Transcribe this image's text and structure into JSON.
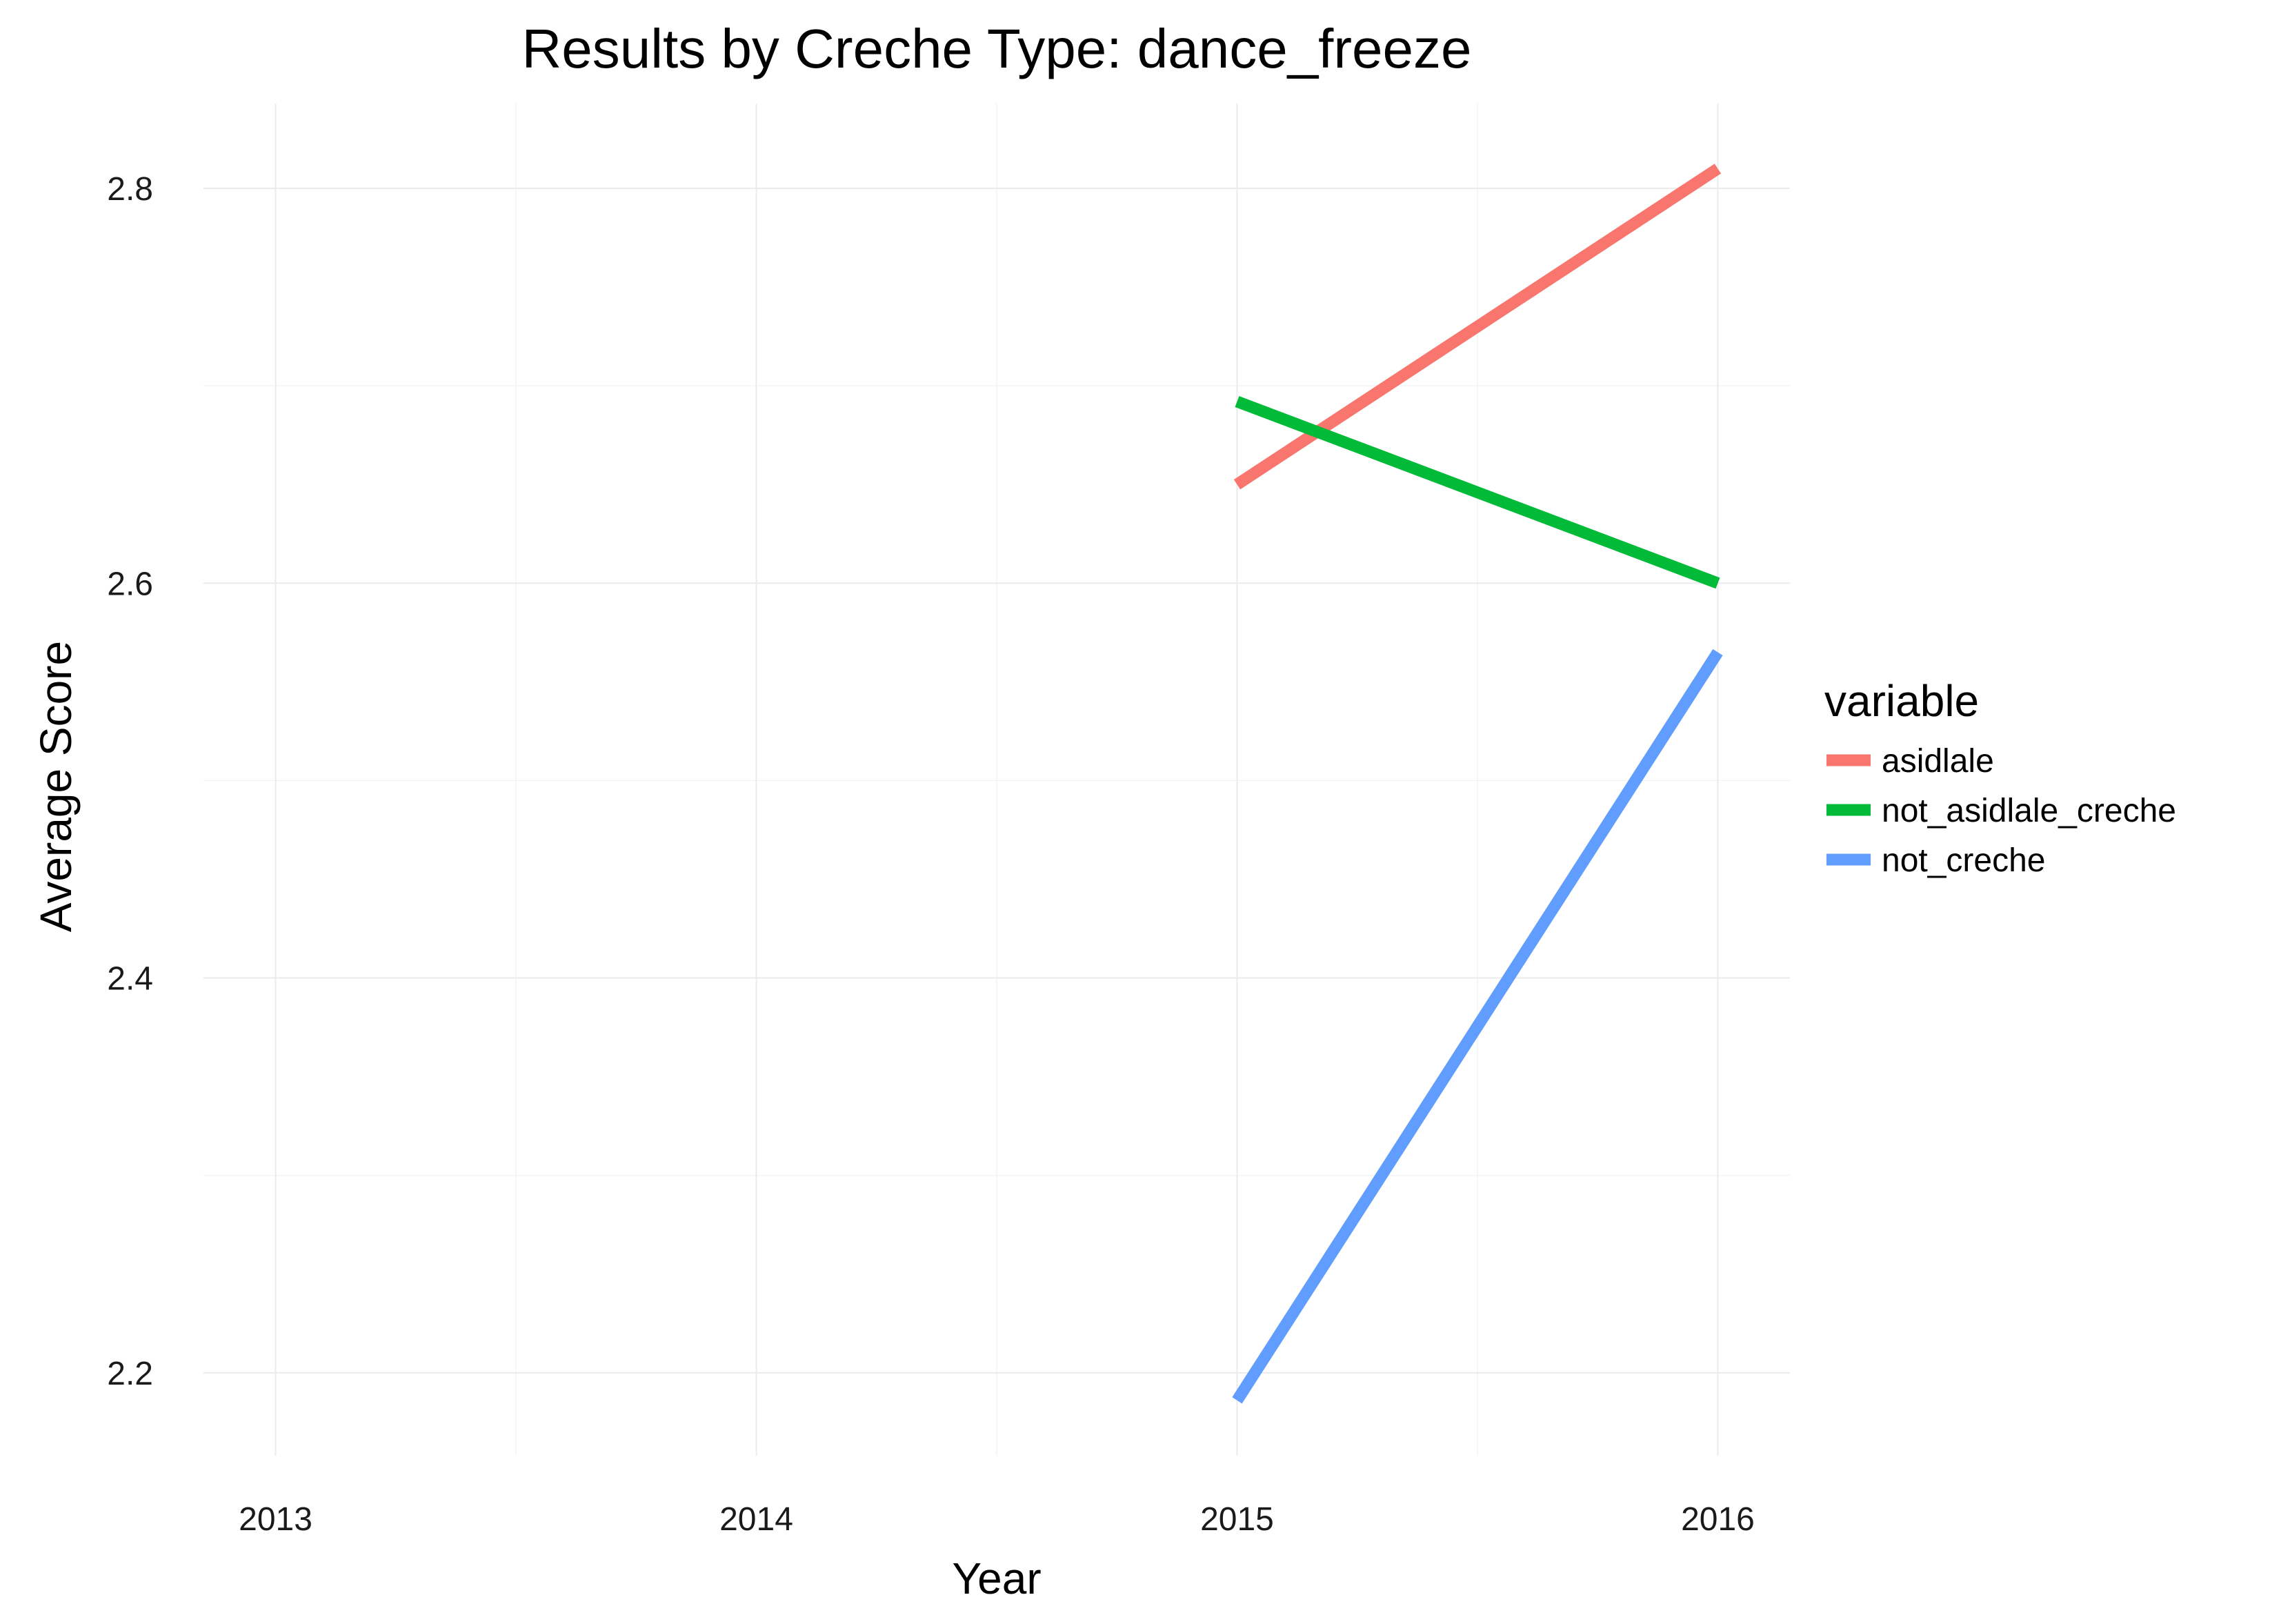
{
  "chart_data": {
    "type": "line",
    "title": "Results by Creche Type: dance_freeze",
    "xlabel": "Year",
    "ylabel": "Average Score",
    "xlim": [
      2012.85,
      2016.15
    ],
    "ylim": [
      2.158,
      2.843
    ],
    "x_ticks": [
      2013,
      2014,
      2015,
      2016
    ],
    "x_tick_labels": [
      "2013",
      "2014",
      "2015",
      "2016"
    ],
    "y_ticks": [
      2.2,
      2.4,
      2.6,
      2.8
    ],
    "y_tick_labels": [
      "2.2",
      "2.4",
      "2.6",
      "2.8"
    ],
    "grid": true,
    "legend": {
      "title": "variable",
      "position": "right"
    },
    "series": [
      {
        "name": "asidlale",
        "color": "#F8766D",
        "x": [
          2015,
          2016
        ],
        "values": [
          2.65,
          2.81
        ]
      },
      {
        "name": "not_asidlale_creche",
        "color": "#00BA38",
        "x": [
          2015,
          2016
        ],
        "values": [
          2.692,
          2.6
        ]
      },
      {
        "name": "not_creche",
        "color": "#619CFF",
        "x": [
          2015,
          2016
        ],
        "values": [
          2.186,
          2.565
        ]
      }
    ]
  }
}
